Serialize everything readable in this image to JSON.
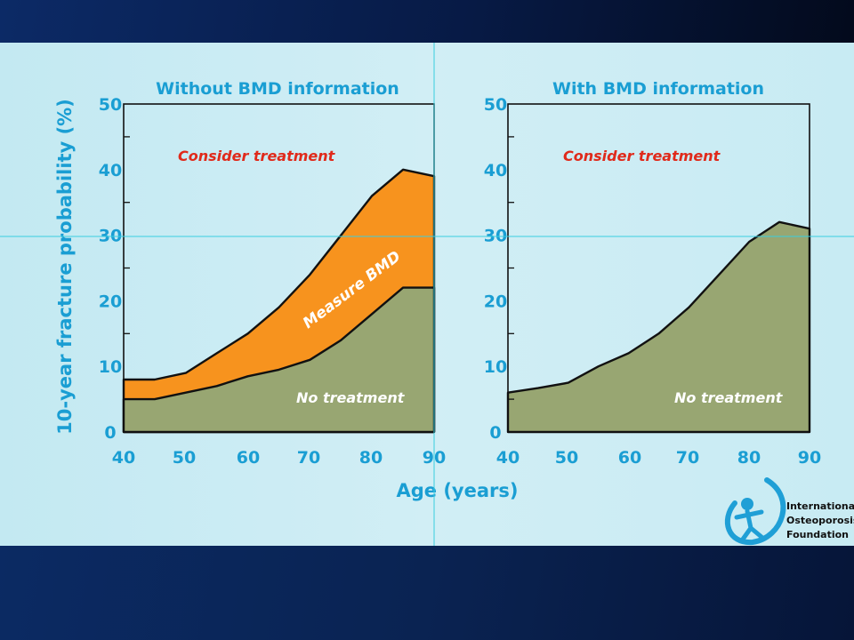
{
  "chart_data": [
    {
      "type": "area",
      "title": "Without BMD information",
      "x": [
        40,
        45,
        50,
        55,
        60,
        65,
        70,
        75,
        80,
        85,
        90
      ],
      "xlim": [
        40,
        90
      ],
      "ylim": [
        0,
        50
      ],
      "yticks": [
        0,
        10,
        20,
        30,
        40,
        50
      ],
      "xticks": [
        40,
        50,
        60,
        70,
        80,
        90
      ],
      "series": [
        {
          "name": "No treatment",
          "color": "#98a672",
          "values": [
            5,
            5,
            6,
            7,
            8.5,
            9.5,
            11,
            14,
            18,
            22,
            22
          ]
        },
        {
          "name": "Measure BMD",
          "color": "#f7931e",
          "values": [
            8,
            8,
            9,
            12,
            15,
            19,
            24,
            30,
            36,
            40,
            39
          ]
        }
      ],
      "region_labels": {
        "upper": "Consider treatment",
        "middle": "Measure BMD",
        "lower": "No treatment"
      }
    },
    {
      "type": "area",
      "title": "With BMD information",
      "x": [
        40,
        45,
        50,
        55,
        60,
        65,
        70,
        75,
        80,
        85,
        90
      ],
      "xlim": [
        40,
        90
      ],
      "ylim": [
        0,
        50
      ],
      "yticks": [
        0,
        10,
        20,
        30,
        40,
        50
      ],
      "xticks": [
        40,
        50,
        60,
        70,
        80,
        90
      ],
      "series": [
        {
          "name": "No treatment",
          "color": "#98a672",
          "values": [
            6,
            6.7,
            7.5,
            10,
            12,
            15,
            19,
            24,
            29,
            32,
            31
          ]
        }
      ],
      "region_labels": {
        "upper": "Consider treatment",
        "lower": "No treatment"
      }
    }
  ],
  "axes": {
    "ylabel": "10-year fracture probability (%)",
    "xlabel": "Age (years)"
  },
  "logo": {
    "line1": "International",
    "line2": "Osteoporosis",
    "line3": "Foundation"
  },
  "colors": {
    "axis_text": "#1a9ed3",
    "consider_text": "#e02a1b",
    "no_treatment_fill": "#98a672",
    "measure_fill": "#f7931e"
  }
}
